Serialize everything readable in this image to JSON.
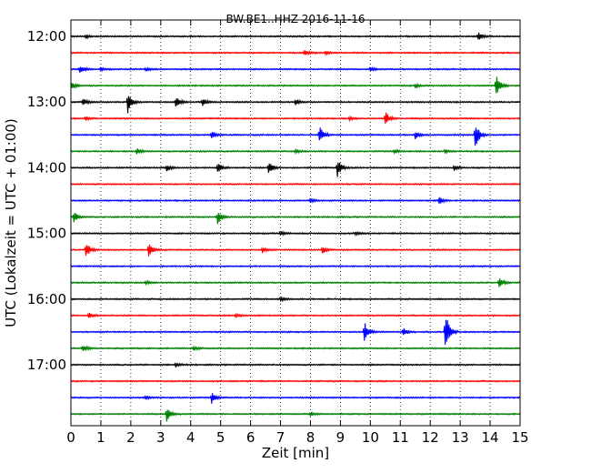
{
  "chart_data": {
    "type": "line",
    "title": "BW.BE1..HHZ 2016-11-16",
    "xlabel": "Zeit  [min]",
    "ylabel": "UTC (Lokalzeit = UTC + 01:00)",
    "xlim": [
      0,
      15
    ],
    "x_ticks": [
      "0",
      "1",
      "2",
      "3",
      "4",
      "5",
      "6",
      "7",
      "8",
      "9",
      "10",
      "11",
      "12",
      "13",
      "14",
      "15"
    ],
    "y_ticks": [
      "12:00",
      "13:00",
      "14:00",
      "15:00",
      "16:00",
      "17:00"
    ],
    "grid": "vertical dotted",
    "trace_colors": [
      "#000000",
      "#ff0000",
      "#0000ff",
      "#008000"
    ],
    "trace_interval_minutes": 15,
    "traces": [
      {
        "start": "12:00",
        "events": [
          [
            0.5,
            2
          ],
          [
            13.6,
            5
          ]
        ]
      },
      {
        "start": "12:15",
        "events": [
          [
            7.8,
            3
          ],
          [
            8.5,
            2
          ]
        ]
      },
      {
        "start": "12:30",
        "events": [
          [
            0.3,
            5
          ],
          [
            1.0,
            2
          ],
          [
            2.5,
            2
          ],
          [
            10.0,
            2
          ]
        ]
      },
      {
        "start": "12:45",
        "events": [
          [
            0.0,
            5
          ],
          [
            14.2,
            12
          ],
          [
            11.5,
            2
          ]
        ]
      },
      {
        "start": "13:00",
        "events": [
          [
            0.4,
            4
          ],
          [
            1.9,
            12
          ],
          [
            3.5,
            7
          ],
          [
            4.4,
            5
          ],
          [
            7.5,
            3
          ]
        ]
      },
      {
        "start": "13:15",
        "events": [
          [
            10.5,
            8
          ],
          [
            0.5,
            2
          ],
          [
            9.3,
            2
          ]
        ]
      },
      {
        "start": "13:30",
        "events": [
          [
            4.7,
            4
          ],
          [
            8.3,
            10
          ],
          [
            11.5,
            4
          ],
          [
            13.5,
            17
          ]
        ]
      },
      {
        "start": "13:45",
        "events": [
          [
            2.2,
            3
          ],
          [
            7.5,
            2
          ],
          [
            10.8,
            2
          ],
          [
            12.5,
            2
          ]
        ]
      },
      {
        "start": "14:00",
        "events": [
          [
            3.2,
            4
          ],
          [
            4.9,
            6
          ],
          [
            6.6,
            7
          ],
          [
            8.9,
            10
          ],
          [
            12.8,
            3
          ]
        ]
      },
      {
        "start": "14:15",
        "events": []
      },
      {
        "start": "14:30",
        "events": [
          [
            12.3,
            4
          ],
          [
            8.0,
            2
          ]
        ]
      },
      {
        "start": "14:45",
        "events": [
          [
            0.1,
            7
          ],
          [
            4.9,
            8
          ]
        ]
      },
      {
        "start": "15:00",
        "events": [
          [
            7.0,
            3
          ],
          [
            9.5,
            2
          ]
        ]
      },
      {
        "start": "15:15",
        "events": [
          [
            0.5,
            10
          ],
          [
            2.6,
            8
          ],
          [
            6.4,
            3
          ],
          [
            8.4,
            4
          ]
        ]
      },
      {
        "start": "15:30",
        "events": []
      },
      {
        "start": "15:45",
        "events": [
          [
            14.3,
            6
          ],
          [
            2.5,
            2
          ]
        ]
      },
      {
        "start": "16:00",
        "events": [
          [
            7.0,
            2
          ]
        ]
      },
      {
        "start": "16:15",
        "events": [
          [
            0.6,
            3
          ],
          [
            5.5,
            2
          ]
        ]
      },
      {
        "start": "16:30",
        "events": [
          [
            9.8,
            12
          ],
          [
            11.1,
            5
          ],
          [
            12.5,
            25
          ]
        ]
      },
      {
        "start": "16:45",
        "events": [
          [
            0.4,
            4
          ],
          [
            4.1,
            2
          ]
        ]
      },
      {
        "start": "17:00",
        "events": [
          [
            3.5,
            2
          ]
        ]
      },
      {
        "start": "17:15",
        "events": []
      },
      {
        "start": "17:30",
        "events": [
          [
            4.7,
            6
          ],
          [
            2.5,
            2
          ]
        ]
      },
      {
        "start": "17:45",
        "events": [
          [
            3.2,
            8
          ],
          [
            8.0,
            2
          ]
        ]
      }
    ]
  }
}
